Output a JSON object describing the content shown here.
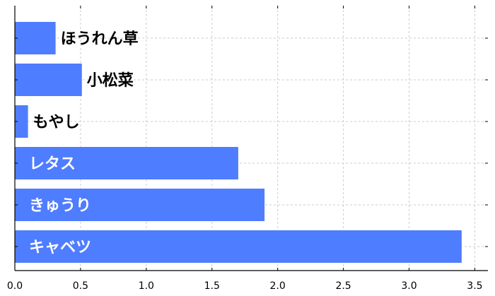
{
  "chart_data": {
    "type": "bar",
    "orientation": "horizontal",
    "categories": [
      "ほうれん草",
      "小松菜",
      "もやし",
      "レタス",
      "きゅうり",
      "キャベツ"
    ],
    "values": [
      0.31,
      0.51,
      0.1,
      1.7,
      1.9,
      3.4
    ],
    "xlim": [
      0,
      3.6
    ],
    "xticks": [
      "0.0",
      "0.5",
      "1.0",
      "1.5",
      "2.0",
      "2.5",
      "3.0",
      "3.5"
    ],
    "title": "",
    "xlabel": "",
    "ylabel": "",
    "grid": true,
    "bar_color": "#4f7dff",
    "label_color_inside": "#ffffff",
    "label_color_outside": "#000000"
  }
}
